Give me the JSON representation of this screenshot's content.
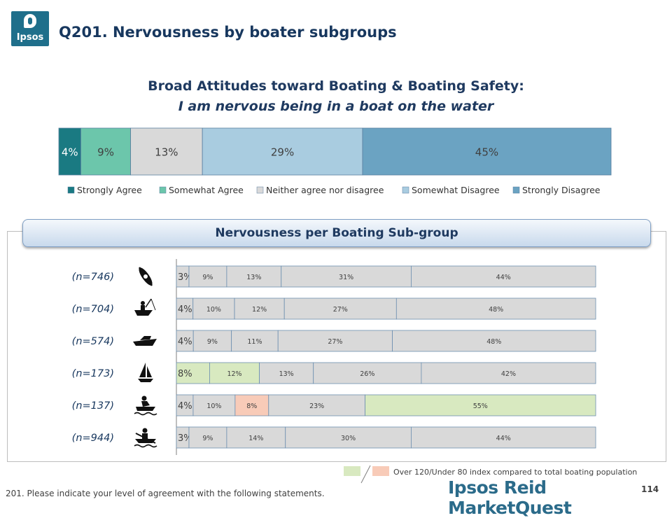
{
  "header": {
    "logo_text": "Ipsos",
    "title": "Q201. Nervousness by boater subgroups"
  },
  "top_chart": {
    "title": "Broad Attitudes toward Boating & Boating Safety:",
    "subtitle": "I am nervous being in a boat on the water"
  },
  "banner_label": "Nervousness per Boating Sub-group",
  "chart_data": [
    {
      "type": "bar",
      "stacked": true,
      "orientation": "horizontal",
      "title": "Broad Attitudes toward Boating & Boating Safety:",
      "subtitle": "I am nervous being in a boat on the water",
      "categories": [
        "Strongly Agree",
        "Somewhat Agree",
        "Neither agree nor disagree",
        "Somewhat Disagree",
        "Strongly Disagree"
      ],
      "values": [
        4,
        9,
        13,
        29,
        45
      ],
      "value_labels": [
        "4%",
        "9%",
        "13%",
        "29%",
        "45%"
      ],
      "colors": [
        "#1a7a82",
        "#6cc6ab",
        "#d9d9d9",
        "#a9cce0",
        "#6ba3c2"
      ],
      "legend_position": "bottom"
    },
    {
      "type": "bar",
      "stacked": true,
      "orientation": "horizontal",
      "title": "Nervousness per Boating Sub-group",
      "rows": [
        {
          "n_label": "(n=746)",
          "icon": "paddle-boat-icon",
          "values": [
            3,
            9,
            13,
            31,
            44
          ],
          "labels": [
            "3%",
            "9%",
            "13%",
            "31%",
            "44%"
          ],
          "highlight": [
            "none",
            "none",
            "none",
            "none",
            "none"
          ]
        },
        {
          "n_label": "(n=704)",
          "icon": "fishing-boat-icon",
          "values": [
            4,
            10,
            12,
            27,
            48
          ],
          "labels": [
            "4%",
            "10%",
            "12%",
            "27%",
            "48%"
          ],
          "highlight": [
            "none",
            "none",
            "none",
            "none",
            "none"
          ]
        },
        {
          "n_label": "(n=574)",
          "icon": "powerboat-icon",
          "values": [
            4,
            9,
            11,
            27,
            48
          ],
          "labels": [
            "4%",
            "9%",
            "11%",
            "27%",
            "48%"
          ],
          "highlight": [
            "none",
            "none",
            "none",
            "none",
            "none"
          ]
        },
        {
          "n_label": "(n=173)",
          "icon": "sailboat-icon",
          "values": [
            8,
            12,
            13,
            26,
            42
          ],
          "labels": [
            "8%",
            "12%",
            "13%",
            "26%",
            "42%"
          ],
          "highlight": [
            "over",
            "over",
            "none",
            "none",
            "none"
          ]
        },
        {
          "n_label": "(n=137)",
          "icon": "jet-ski-icon",
          "values": [
            4,
            10,
            8,
            23,
            55
          ],
          "labels": [
            "4%",
            "10%",
            "8%",
            "23%",
            "55%"
          ],
          "highlight": [
            "none",
            "none",
            "under",
            "none",
            "over"
          ]
        },
        {
          "n_label": "(n=944)",
          "icon": "rowboat-icon",
          "values": [
            3,
            9,
            14,
            30,
            44
          ],
          "labels": [
            "3%",
            "9%",
            "14%",
            "30%",
            "44%"
          ],
          "highlight": [
            "none",
            "none",
            "none",
            "none",
            "none"
          ]
        }
      ],
      "highlight_colors": {
        "over": "#d8e9c0",
        "under": "#f8cbb8",
        "none": "#d9d9d9"
      }
    }
  ],
  "index_legend": {
    "text": "Over 120/Under 80 index compared to total boating population"
  },
  "footer": {
    "footnote": "201. Please indicate your level of agreement with the following statements.",
    "brand": "Ipsos Reid MarketQuest",
    "page_number": "114"
  }
}
